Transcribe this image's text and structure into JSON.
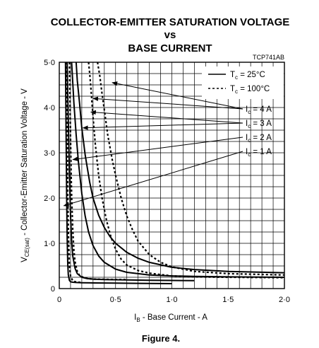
{
  "chart_data": {
    "type": "line",
    "title_lines": [
      "COLLECTOR-EMITTER SATURATION VOLTAGE",
      "vs",
      "BASE CURRENT"
    ],
    "figure_code": "TCP741AB",
    "caption": "Figure 4.",
    "xlabel": {
      "sym": "I",
      "sub": "B",
      "rest": " - Base Current - A"
    },
    "ylabel": {
      "sym": "V",
      "sub": "CE(sat)",
      "rest": " - Collector-Emitter Saturation Voltage - V"
    },
    "xlim": [
      0,
      2.0
    ],
    "ylim": [
      0,
      5.0
    ],
    "xticks": [
      0,
      0.5,
      1.0,
      1.5,
      2.0
    ],
    "xtick_labels": [
      "0",
      "0·5",
      "1·0",
      "1·5",
      "2·0"
    ],
    "yticks": [
      0,
      1.0,
      2.0,
      3.0,
      4.0,
      5.0
    ],
    "ytick_labels": [
      "0",
      "1·0",
      "2·0",
      "3·0",
      "4·0",
      "5·0"
    ],
    "grid": true,
    "legend": {
      "placement": "top-right",
      "entries": [
        {
          "sym": "T",
          "sub": "c",
          "rest": " =   25°C",
          "style": "solid"
        },
        {
          "sym": "T",
          "sub": "c",
          "rest": " = 100°C",
          "style": "dashed"
        }
      ]
    },
    "annotations": [
      {
        "sym": "I",
        "sub": "c",
        "rest": " = 4 A",
        "targets": [
          [
            0.3,
            4.2
          ],
          [
            0.47,
            4.55
          ]
        ]
      },
      {
        "sym": "I",
        "sub": "c",
        "rest": " = 3 A",
        "targets": [
          [
            0.28,
            3.9
          ],
          [
            0.21,
            3.55
          ]
        ]
      },
      {
        "sym": "I",
        "sub": "c",
        "rest": " = 2 A",
        "targets": [
          [
            0.12,
            2.85
          ]
        ]
      },
      {
        "sym": "I",
        "sub": "c",
        "rest": " = 1 A",
        "targets": [
          [
            0.04,
            1.83
          ]
        ]
      }
    ],
    "series": [
      {
        "ic": "4 A",
        "tc": "25°C",
        "style": "solid",
        "x": [
          0.15,
          0.16,
          0.18,
          0.2,
          0.23,
          0.27,
          0.3,
          0.35,
          0.4,
          0.45,
          0.5,
          0.6,
          0.7,
          0.8,
          1.0,
          1.2,
          1.5,
          2.0
        ],
        "y": [
          5.0,
          4.6,
          4.1,
          3.55,
          2.95,
          2.35,
          2.0,
          1.62,
          1.35,
          1.15,
          1.0,
          0.8,
          0.67,
          0.58,
          0.47,
          0.42,
          0.38,
          0.35
        ]
      },
      {
        "ic": "4 A",
        "tc": "100°C",
        "style": "dashed",
        "x": [
          0.34,
          0.36,
          0.38,
          0.4,
          0.43,
          0.47,
          0.5,
          0.55,
          0.6,
          0.65,
          0.7,
          0.8,
          0.9,
          1.0,
          1.2,
          1.5,
          2.0
        ],
        "y": [
          5.0,
          4.7,
          4.3,
          3.95,
          3.4,
          2.85,
          2.5,
          2.0,
          1.6,
          1.3,
          1.05,
          0.75,
          0.58,
          0.48,
          0.38,
          0.33,
          0.3
        ]
      },
      {
        "ic": "3 A",
        "tc": "25°C",
        "style": "solid",
        "x": [
          0.11,
          0.12,
          0.13,
          0.15,
          0.17,
          0.2,
          0.23,
          0.26,
          0.3,
          0.35,
          0.4,
          0.5,
          0.6,
          0.8,
          1.0,
          1.2,
          1.5,
          2.0
        ],
        "y": [
          5.0,
          4.55,
          4.1,
          3.4,
          2.8,
          2.1,
          1.6,
          1.25,
          0.95,
          0.72,
          0.58,
          0.43,
          0.36,
          0.3,
          0.28,
          0.27,
          0.26,
          0.25
        ]
      },
      {
        "ic": "3 A",
        "tc": "100°C",
        "style": "dashed",
        "x": [
          0.26,
          0.27,
          0.28,
          0.29,
          0.3,
          0.32,
          0.35,
          0.38,
          0.42,
          0.46,
          0.5,
          0.55,
          0.6,
          0.7,
          0.8,
          1.0,
          1.2,
          1.5,
          2.0
        ],
        "y": [
          5.0,
          4.75,
          4.45,
          4.1,
          3.8,
          3.2,
          2.5,
          2.0,
          1.5,
          1.13,
          0.87,
          0.65,
          0.52,
          0.4,
          0.34,
          0.28,
          0.26,
          0.25,
          0.24
        ]
      },
      {
        "ic": "2 A",
        "tc": "25°C",
        "style": "solid",
        "x": [
          0.07,
          0.075,
          0.08,
          0.085,
          0.09,
          0.1,
          0.11,
          0.12,
          0.14,
          0.16,
          0.2,
          0.25,
          0.3,
          0.4,
          0.5,
          0.6,
          0.8,
          1.0,
          1.2
        ],
        "y": [
          5.0,
          4.3,
          3.7,
          3.1,
          2.5,
          1.6,
          1.05,
          0.72,
          0.45,
          0.33,
          0.25,
          0.22,
          0.21,
          0.2,
          0.195,
          0.19,
          0.185,
          0.18,
          0.175
        ]
      },
      {
        "ic": "2 A",
        "tc": "100°C",
        "style": "dashed",
        "x": [
          0.09,
          0.095,
          0.1,
          0.105,
          0.11,
          0.12,
          0.13,
          0.14,
          0.16,
          0.18,
          0.22,
          0.26,
          0.3,
          0.4,
          0.5,
          0.6
        ],
        "y": [
          5.0,
          4.1,
          3.3,
          2.6,
          2.05,
          1.3,
          0.85,
          0.6,
          0.38,
          0.29,
          0.24,
          0.22,
          0.21,
          0.205,
          0.2,
          0.2
        ]
      },
      {
        "ic": "1 A",
        "tc": "25°C",
        "style": "solid",
        "x": [
          0.055,
          0.06,
          0.065,
          0.07,
          0.075,
          0.08,
          0.09,
          0.1,
          0.12,
          0.15,
          0.2,
          0.3,
          0.5,
          0.7,
          1.0
        ],
        "y": [
          5.0,
          3.5,
          2.1,
          1.1,
          0.55,
          0.3,
          0.18,
          0.15,
          0.14,
          0.135,
          0.13,
          0.125,
          0.12,
          0.115,
          0.11
        ]
      },
      {
        "ic": "1 A",
        "tc": "100°C",
        "style": "dashed",
        "x": [
          0.065,
          0.068,
          0.072,
          0.076,
          0.08,
          0.085,
          0.09,
          0.1,
          0.12,
          0.15,
          0.2
        ],
        "y": [
          5.0,
          4.0,
          2.9,
          2.0,
          1.35,
          0.8,
          0.5,
          0.28,
          0.17,
          0.145,
          0.135
        ]
      }
    ]
  }
}
